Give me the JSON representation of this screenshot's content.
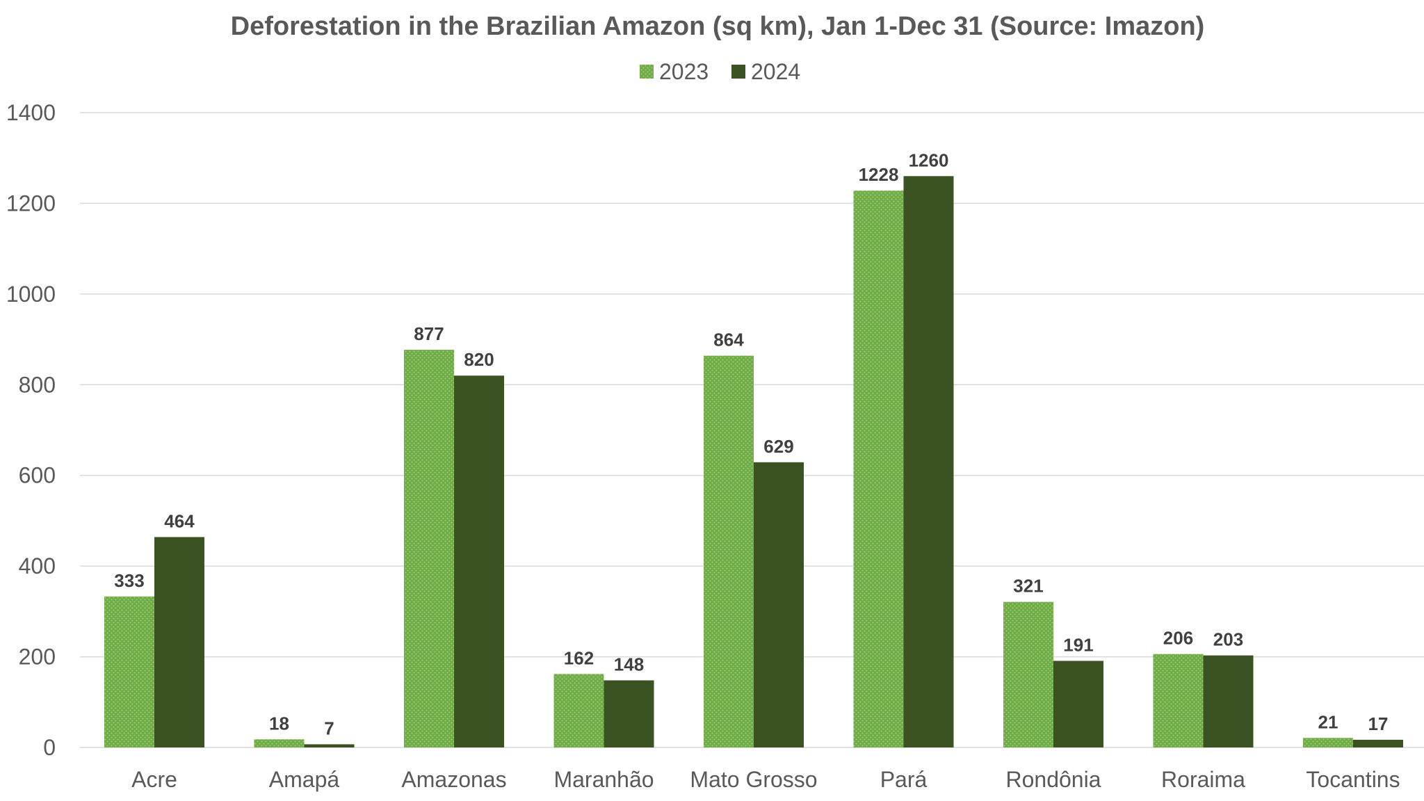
{
  "chart_data": {
    "type": "bar",
    "title": "Deforestation in the Brazilian Amazon (sq km), Jan 1-Dec 31 (Source: Imazon)",
    "categories": [
      "Acre",
      "Amapá",
      "Amazonas",
      "Maranhão",
      "Mato Grosso",
      "Pará",
      "Rondônia",
      "Roraima",
      "Tocantins"
    ],
    "series": [
      {
        "name": "2023",
        "color": "#70AD47",
        "pattern": "dotted",
        "values": [
          333,
          18,
          877,
          162,
          864,
          1228,
          321,
          206,
          21
        ]
      },
      {
        "name": "2024",
        "color": "#3B5323",
        "values": [
          464,
          7,
          820,
          148,
          629,
          1260,
          191,
          203,
          17
        ]
      }
    ],
    "ylim": [
      0,
      1400
    ],
    "yticks": [
      0,
      200,
      400,
      600,
      800,
      1000,
      1200,
      1400
    ],
    "grid": true,
    "legend": "top-center",
    "data_labels": true
  }
}
